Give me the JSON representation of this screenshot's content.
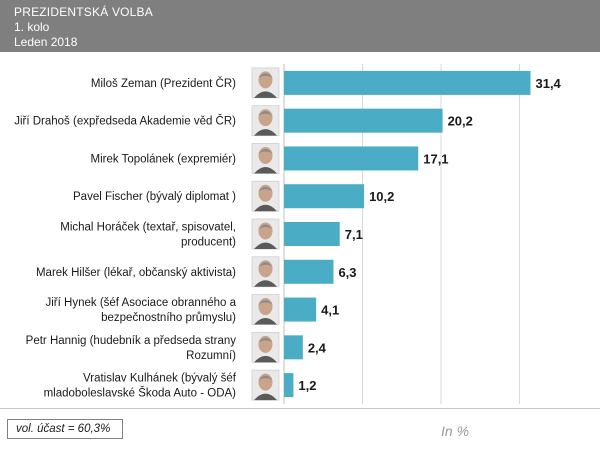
{
  "header": {
    "line1": "PREZIDENTSKÁ  VOLBA",
    "line2": "1. kolo",
    "line3": "Leden  2018"
  },
  "footer": {
    "turnout": "vol. účast = 60,3%",
    "unit": "In %"
  },
  "chart_data": {
    "type": "bar",
    "orientation": "horizontal",
    "categories": [
      [
        "Miloš Zeman (Prezident ČR)"
      ],
      [
        "Jiří Drahoš (expředseda Akademie věd ČR)"
      ],
      [
        "Mirek Topolánek (expremiér)"
      ],
      [
        "Pavel Fischer  (bývalý diplomat )"
      ],
      [
        "Michal Horáček (textař, spisovatel,",
        "producent)"
      ],
      [
        "Marek Hilšer (lékař, občanský aktivista)"
      ],
      [
        "Jiří Hynek (šéf Asociace obranného a",
        "bezpečnostního průmyslu)"
      ],
      [
        "Petr Hannig (hudebník a předseda strany",
        "Rozumní)"
      ],
      [
        "Vratislav Kulhánek (bývalý šéf",
        "mladoboleslavské Škoda Auto - ODA)"
      ]
    ],
    "values": [
      31.4,
      20.2,
      17.1,
      10.2,
      7.1,
      6.3,
      4.1,
      2.4,
      1.2
    ],
    "value_labels": [
      "31,4",
      "20,2",
      "17,1",
      "10,2",
      "7,1",
      "6,3",
      "4,1",
      "2,4",
      "1,2"
    ],
    "xlim": [
      0,
      40
    ],
    "grid": true,
    "colors": {
      "bar": "#4bacc6",
      "header": "#7f7f7f",
      "grid": "#d9d9d9"
    },
    "icons": [
      "candidate-photo"
    ]
  }
}
